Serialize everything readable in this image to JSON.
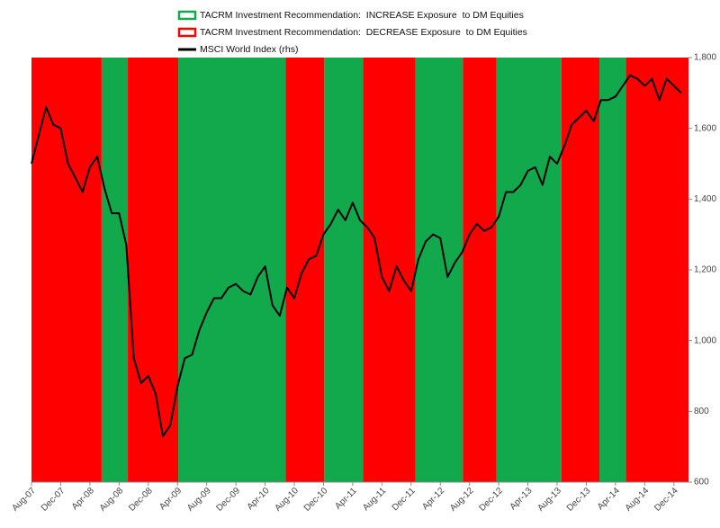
{
  "chart_data": {
    "type": "line",
    "categories": [
      "Aug-07",
      null,
      null,
      null,
      "Dec-07",
      null,
      null,
      null,
      "Apr-08",
      null,
      null,
      null,
      "Aug-08",
      null,
      null,
      null,
      "Dec-08",
      null,
      null,
      null,
      "Apr-09",
      null,
      null,
      null,
      "Aug-09",
      null,
      null,
      null,
      "Dec-09",
      null,
      null,
      null,
      "Apr-10",
      null,
      null,
      null,
      "Aug-10",
      null,
      null,
      null,
      "Dec-10",
      null,
      null,
      null,
      "Apr-11",
      null,
      null,
      null,
      "Aug-11",
      null,
      null,
      null,
      "Dec-11",
      null,
      null,
      null,
      "Apr-12",
      null,
      null,
      null,
      "Aug-12",
      null,
      null,
      null,
      "Dec-12",
      null,
      null,
      null,
      "Apr-13",
      null,
      null,
      null,
      "Aug-13",
      null,
      null,
      null,
      "Dec-13",
      null,
      null,
      null,
      "Apr-14",
      null,
      null,
      null,
      "Aug-14",
      null,
      null,
      null,
      "Dec-14",
      null
    ],
    "series": [
      {
        "name": "TACRM Investment Recommendation:  INCREASE Exposure  to DM Equities",
        "color": "#12a84c",
        "periods": [
          [
            9.6,
            13.2
          ],
          [
            20.1,
            34.8
          ],
          [
            40.1,
            45.4
          ],
          [
            52.6,
            59.1
          ],
          [
            63.7,
            72.6
          ],
          [
            77.8,
            81.4
          ]
        ]
      },
      {
        "name": "TACRM Investment Recommendation:  DECREASE Exposure  to DM Equities",
        "color": "#ff0000",
        "periods": [
          [
            0,
            9.6
          ],
          [
            13.2,
            20.1
          ],
          [
            34.8,
            40.1
          ],
          [
            45.4,
            52.6
          ],
          [
            59.1,
            63.7
          ],
          [
            72.6,
            77.8
          ],
          [
            81.4,
            90
          ]
        ]
      },
      {
        "name": "MSCI World Index (rhs)",
        "color": "#000000",
        "axis": "y2",
        "values": [
          1500,
          1580,
          1660,
          1610,
          1600,
          1500,
          1460,
          1420,
          1490,
          1520,
          1430,
          1360,
          1360,
          1270,
          950,
          880,
          900,
          850,
          730,
          760,
          870,
          950,
          960,
          1030,
          1080,
          1120,
          1120,
          1150,
          1160,
          1140,
          1130,
          1180,
          1210,
          1100,
          1070,
          1150,
          1120,
          1190,
          1230,
          1240,
          1300,
          1330,
          1370,
          1340,
          1390,
          1340,
          1320,
          1290,
          1180,
          1140,
          1210,
          1170,
          1140,
          1230,
          1280,
          1300,
          1290,
          1180,
          1220,
          1250,
          1300,
          1330,
          1310,
          1320,
          1350,
          1420,
          1420,
          1440,
          1480,
          1490,
          1440,
          1520,
          1500,
          1550,
          1610,
          1630,
          1650,
          1620,
          1680,
          1680,
          1690,
          1720,
          1750,
          1740,
          1720,
          1740,
          1680,
          1740,
          1720,
          1700
        ]
      }
    ],
    "y2lim": [
      600,
      1800
    ],
    "y2ticks": [
      600,
      800,
      {
        "value": 1000,
        "label": "1,000"
      },
      {
        "value": 1200,
        "label": "1,200"
      },
      {
        "value": 1400,
        "label": "1,400"
      },
      {
        "value": 1600,
        "label": "1,600"
      },
      {
        "value": 1800,
        "label": "1,800"
      }
    ]
  }
}
